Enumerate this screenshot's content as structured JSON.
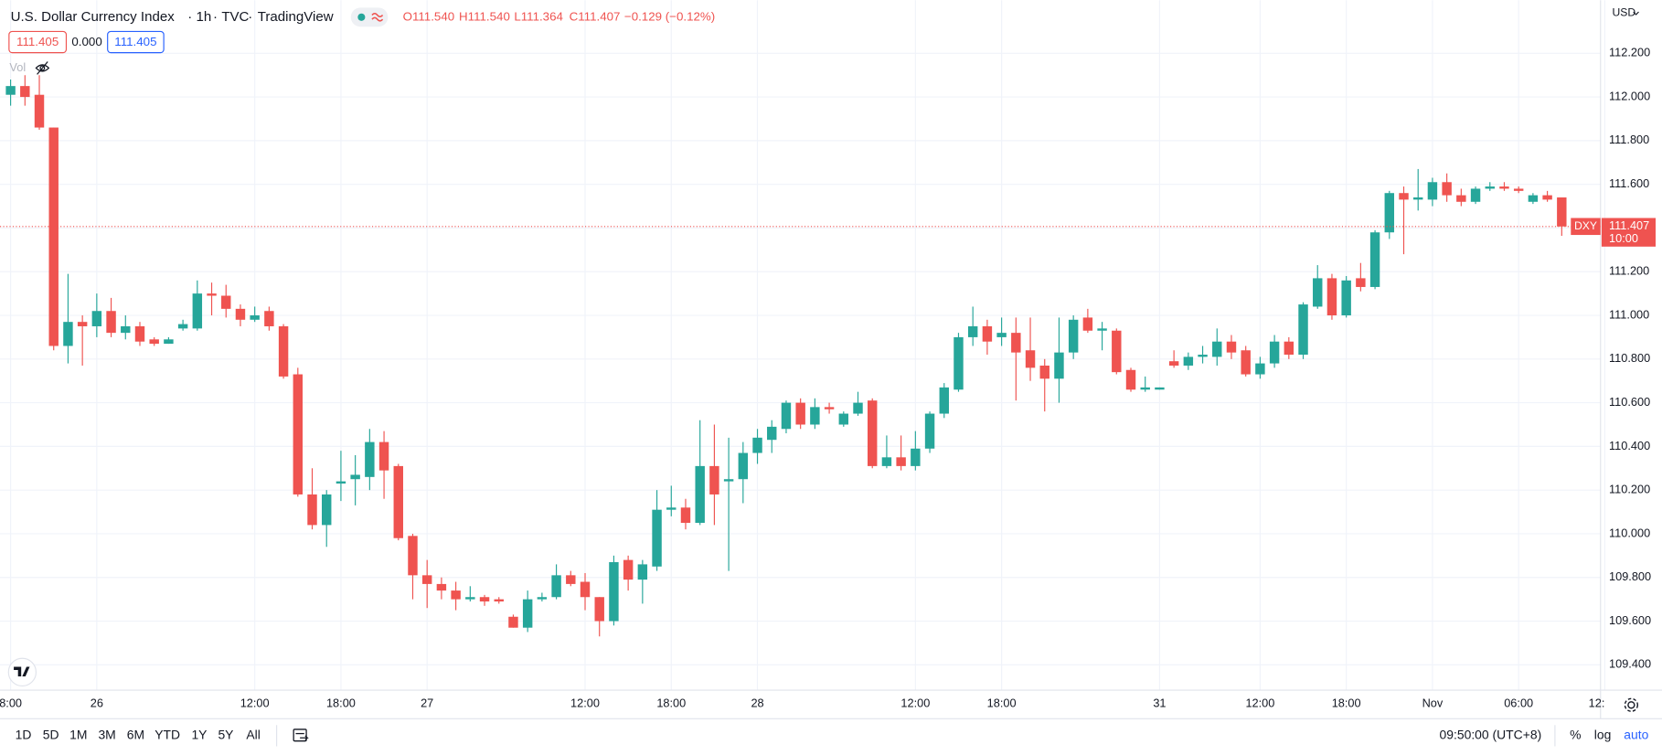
{
  "header": {
    "symbol": "U.S. Dollar Currency Index",
    "interval": "1h",
    "exchange": "TVC",
    "source": "TradingView",
    "open": "O111.540",
    "high": "H111.540",
    "low": "L111.364",
    "close": "C111.407",
    "change": "−0.129 (−0.12%)",
    "bid": "111.405",
    "spread": "0.000",
    "ask": "111.405",
    "volume": "Vol"
  },
  "currency": "USD",
  "chart_data": {
    "type": "candlestick",
    "categories": [
      "8:00",
      null,
      null,
      null,
      null,
      null,
      "26",
      null,
      null,
      null,
      null,
      null,
      null,
      null,
      null,
      null,
      null,
      "12:00",
      null,
      null,
      null,
      null,
      null,
      "18:00",
      null,
      null,
      null,
      null,
      null,
      "27",
      null,
      null,
      null,
      null,
      null,
      null,
      null,
      null,
      null,
      null,
      "12:00",
      null,
      null,
      null,
      null,
      null,
      "18:00",
      null,
      null,
      null,
      null,
      null,
      "28",
      null,
      null,
      null,
      null,
      null,
      null,
      null,
      null,
      null,
      null,
      "12:00",
      null,
      null,
      null,
      null,
      null,
      "18:00",
      null,
      null,
      null,
      null,
      null,
      null,
      null,
      null,
      null,
      null,
      "31",
      null,
      null,
      null,
      null,
      null,
      null,
      "12:00",
      null,
      null,
      null,
      null,
      null,
      "18:00",
      null,
      null,
      null,
      null,
      null,
      "Nov",
      null,
      null,
      null,
      null,
      null,
      "06:00",
      null,
      null,
      null,
      null,
      null,
      "12:"
    ],
    "open": [
      112.01,
      112.05,
      112.01,
      111.86,
      110.86,
      110.97,
      110.95,
      111.02,
      110.92,
      110.95,
      110.89,
      110.87,
      110.94,
      110.94,
      111.1,
      111.09,
      111.03,
      110.98,
      111.02,
      110.95,
      110.73,
      110.18,
      110.04,
      110.23,
      110.25,
      110.26,
      110.42,
      110.31,
      109.99,
      109.81,
      109.77,
      109.74,
      109.7,
      109.71,
      109.7,
      109.62,
      109.57,
      109.7,
      109.71,
      109.81,
      109.78,
      109.71,
      109.6,
      109.88,
      109.79,
      109.85,
      110.11,
      110.12,
      110.05,
      110.31,
      110.24,
      110.25,
      110.37,
      110.43,
      110.48,
      110.6,
      110.5,
      110.58,
      110.5,
      110.55,
      110.61,
      110.31,
      110.35,
      110.31,
      110.39,
      110.55,
      110.66,
      110.9,
      110.95,
      110.9,
      110.92,
      110.84,
      110.77,
      110.71,
      110.83,
      110.99,
      110.93,
      110.93,
      110.75,
      110.66,
      110.66,
      110.79,
      110.77,
      110.81,
      110.81,
      110.88,
      110.84,
      110.73,
      110.78,
      110.88,
      110.82,
      111.04,
      111.17,
      111.0,
      111.17,
      111.13,
      111.38,
      111.56,
      111.53,
      111.53,
      111.61,
      111.55,
      111.52,
      111.58,
      111.59,
      111.58,
      111.52,
      111.55,
      111.54,
      null,
      null,
      null
    ],
    "high": [
      112.08,
      112.1,
      112.1,
      111.86,
      111.19,
      111.0,
      111.1,
      111.08,
      111.0,
      110.97,
      110.9,
      110.9,
      110.98,
      111.16,
      111.15,
      111.14,
      111.05,
      111.04,
      111.04,
      110.96,
      110.76,
      110.3,
      110.2,
      110.38,
      110.36,
      110.48,
      110.47,
      110.32,
      110.0,
      109.88,
      109.8,
      109.78,
      109.76,
      109.72,
      109.71,
      109.63,
      109.74,
      109.73,
      109.86,
      109.83,
      109.82,
      109.71,
      109.9,
      109.9,
      109.88,
      110.2,
      110.22,
      110.16,
      110.52,
      110.5,
      110.44,
      110.42,
      110.48,
      110.52,
      110.61,
      110.62,
      110.62,
      110.6,
      110.56,
      110.65,
      110.62,
      110.45,
      110.45,
      110.47,
      110.56,
      110.69,
      110.92,
      111.04,
      110.98,
      110.99,
      110.99,
      110.99,
      110.8,
      110.99,
      111.0,
      111.03,
      110.97,
      110.94,
      110.76,
      110.72,
      110.67,
      110.84,
      110.83,
      110.86,
      110.94,
      110.91,
      110.86,
      110.81,
      110.91,
      110.9,
      111.06,
      111.23,
      111.19,
      111.18,
      111.24,
      111.39,
      111.57,
      111.59,
      111.67,
      111.63,
      111.65,
      111.58,
      111.59,
      111.61,
      111.61,
      111.59,
      111.56,
      111.57,
      111.54,
      null,
      null,
      null
    ],
    "low": [
      111.96,
      111.96,
      111.85,
      110.84,
      110.78,
      110.77,
      110.9,
      110.9,
      110.89,
      110.86,
      110.86,
      110.87,
      110.93,
      110.93,
      111.0,
      110.99,
      110.95,
      110.97,
      110.93,
      110.71,
      110.17,
      110.02,
      109.94,
      110.15,
      110.13,
      110.2,
      110.16,
      109.97,
      109.7,
      109.66,
      109.7,
      109.65,
      109.69,
      109.67,
      109.68,
      109.57,
      109.55,
      109.69,
      109.7,
      109.76,
      109.65,
      109.53,
      109.58,
      109.74,
      109.68,
      109.83,
      110.08,
      110.02,
      110.04,
      110.04,
      109.83,
      110.14,
      110.32,
      110.37,
      110.46,
      110.48,
      110.48,
      110.55,
      110.49,
      110.54,
      110.3,
      110.3,
      110.29,
      110.29,
      110.37,
      110.53,
      110.65,
      110.86,
      110.82,
      110.86,
      110.61,
      110.7,
      110.56,
      110.6,
      110.8,
      110.92,
      110.84,
      110.73,
      110.65,
      110.65,
      110.66,
      110.76,
      110.75,
      110.78,
      110.77,
      110.8,
      110.72,
      110.71,
      110.76,
      110.8,
      110.8,
      111.03,
      110.98,
      110.99,
      111.11,
      111.12,
      111.35,
      111.28,
      111.48,
      111.5,
      111.52,
      111.5,
      111.51,
      111.57,
      111.57,
      111.56,
      111.51,
      111.52,
      111.364,
      null,
      null,
      null
    ],
    "close": [
      112.05,
      112.0,
      111.86,
      110.86,
      110.97,
      110.95,
      111.02,
      110.92,
      110.95,
      110.88,
      110.87,
      110.89,
      110.96,
      111.1,
      111.09,
      111.03,
      110.98,
      111.0,
      110.95,
      110.72,
      110.18,
      110.04,
      110.18,
      110.24,
      110.27,
      110.42,
      110.29,
      109.98,
      109.81,
      109.77,
      109.74,
      109.7,
      109.71,
      109.69,
      109.69,
      109.57,
      109.7,
      109.71,
      109.81,
      109.77,
      109.71,
      109.6,
      109.87,
      109.79,
      109.86,
      110.11,
      110.12,
      110.05,
      110.31,
      110.18,
      110.25,
      110.37,
      110.44,
      110.49,
      110.6,
      110.5,
      110.58,
      110.57,
      110.55,
      110.6,
      110.31,
      110.35,
      110.31,
      110.39,
      110.55,
      110.67,
      110.9,
      110.95,
      110.88,
      110.92,
      110.83,
      110.76,
      110.71,
      110.83,
      110.98,
      110.93,
      110.94,
      110.74,
      110.66,
      110.67,
      110.67,
      110.77,
      110.81,
      110.82,
      110.88,
      110.83,
      110.73,
      110.78,
      110.88,
      110.82,
      111.05,
      111.17,
      111.0,
      111.16,
      111.13,
      111.38,
      111.56,
      111.53,
      111.54,
      111.61,
      111.55,
      111.52,
      111.58,
      111.59,
      111.58,
      111.57,
      111.55,
      111.53,
      111.407,
      null,
      null,
      null
    ],
    "up_color": "#26a69a",
    "down_color": "#ef5350",
    "ylim": [
      109.284,
      112.443
    ],
    "yticks": [
      {
        "value": 109.4,
        "label": "109.400"
      },
      {
        "value": 109.6,
        "label": "109.600"
      },
      {
        "value": 109.8,
        "label": "109.800"
      },
      {
        "value": 110,
        "label": "110.000"
      },
      {
        "value": 110.2,
        "label": "110.200"
      },
      {
        "value": 110.4,
        "label": "110.400"
      },
      {
        "value": 110.6,
        "label": "110.600"
      },
      {
        "value": 110.8,
        "label": "110.800"
      },
      {
        "value": 111,
        "label": "111.000"
      },
      {
        "value": 111.2,
        "label": "111.200"
      },
      {
        "value": 111.4,
        "label": "111.400"
      },
      {
        "value": 111.6,
        "label": "111.600"
      },
      {
        "value": 111.8,
        "label": "111.800"
      },
      {
        "value": 112,
        "label": "112.000"
      },
      {
        "value": 112.2,
        "label": "112.200"
      }
    ],
    "grid": true,
    "last_price": 111.407,
    "price_label": "DXY",
    "countdown": "10:00"
  },
  "toolbar": {
    "ranges": [
      "1D",
      "5D",
      "1M",
      "3M",
      "6M",
      "YTD",
      "1Y",
      "5Y",
      "All"
    ],
    "time": "09:50:00 (UTC+8)",
    "percent": "%",
    "log": "log",
    "auto": "auto"
  }
}
